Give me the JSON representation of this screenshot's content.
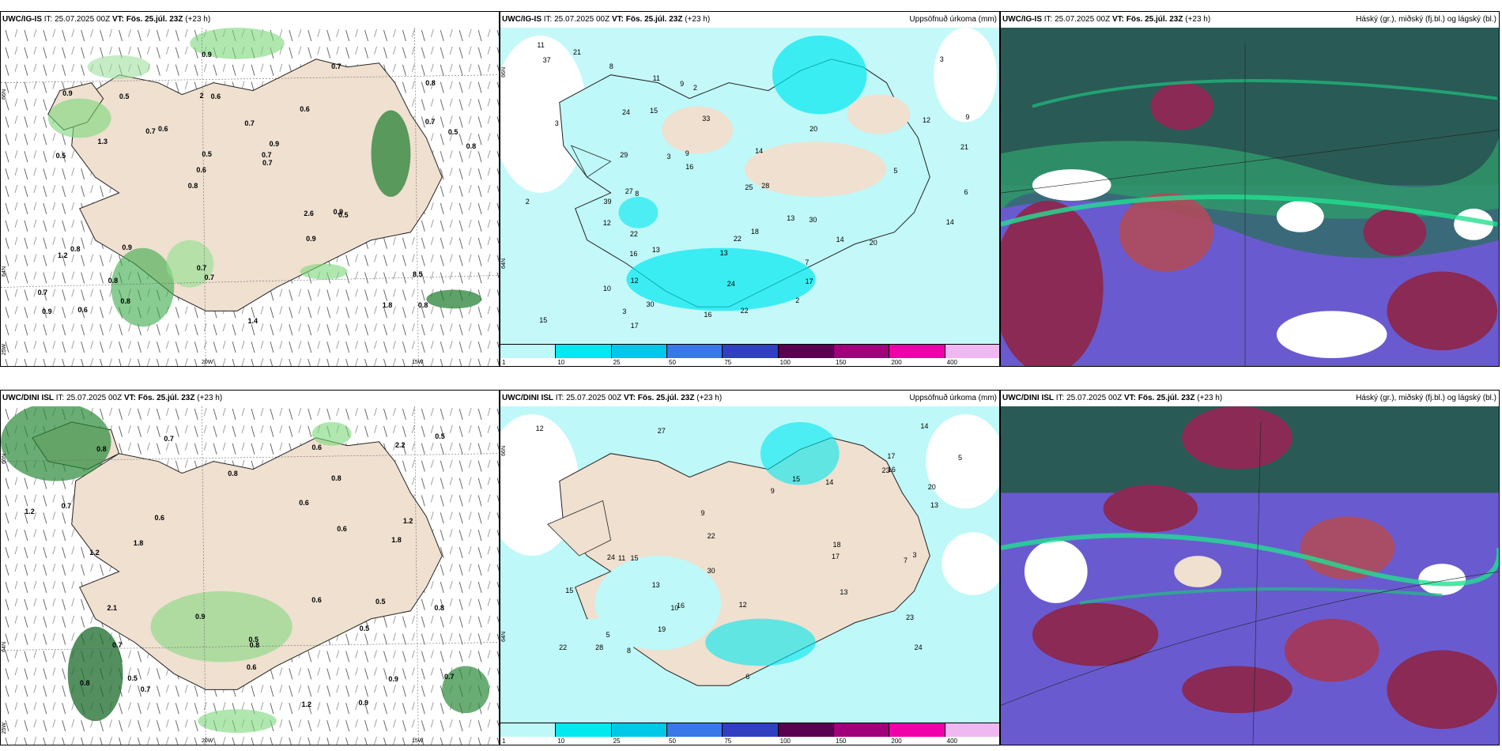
{
  "rows": [
    {
      "model": "UWC/IG-IS",
      "it_label": "IT:",
      "it_value": "25.07.2025 00Z",
      "vt_label": "VT:",
      "vt_value": "Fös. 25.júl. 23Z",
      "lead": "(+23 h)"
    },
    {
      "model": "UWC/DINI ISL",
      "it_label": "IT:",
      "it_value": "25.07.2025 00Z",
      "vt_label": "VT:",
      "vt_value": "Fös. 25.júl. 23Z",
      "lead": "(+23 h)"
    }
  ],
  "precip_title": "Uppsöfnuð úrkoma (mm)",
  "cloud_title": "Háský (gr.), miðský (fj.bl.) og lágský (bl.)",
  "axis_labels": {
    "lat66": "66N",
    "lat64": "64N",
    "lon25": "25W",
    "lon20": "20W",
    "lon15": "15W",
    "lat66r": "66N",
    "lat64r": "64N"
  },
  "colorbar": {
    "labels": [
      "1",
      "10",
      "25",
      "50",
      "75",
      "100",
      "150",
      "200",
      "400"
    ],
    "colors": [
      "#bff8f8",
      "#00e8f0",
      "#00c8e8",
      "#3a78e8",
      "#3040c0",
      "#5a0050",
      "#a0007a",
      "#f000a8",
      "#f0b8f0"
    ]
  },
  "wind_values_top": [
    "0.8",
    "0.5",
    "0.8",
    "0.8",
    "0.6",
    "0.6",
    "2",
    "0.7",
    "0.8",
    "0.6",
    "0.7",
    "0.8",
    "0.6",
    "0.9",
    "0.5",
    "0.9",
    "0.9",
    "0.8",
    "2.6",
    "0.7",
    "0.6",
    "0.7",
    "0.5",
    "0.5",
    "0.7",
    "0.9",
    "1.8",
    "8.5",
    "0.9",
    "1.4",
    "0.7",
    "1.3",
    "0.9",
    "0.8",
    "0.5",
    "0.7",
    "0.9",
    "0.7",
    "0.7",
    "1.2"
  ],
  "wind_values_bottom": [
    "0.8",
    "0.9",
    "0.8",
    "0.8",
    "0.5",
    "0.6",
    "0.7",
    "0.8",
    "1.2",
    "1.8",
    "0.6",
    "2.2",
    "1.2",
    "0.6",
    "0.7",
    "0.8",
    "0.7",
    "0.5",
    "0.6",
    "0.8",
    "0.7",
    "0.5",
    "0.9",
    "1.2",
    "0.5",
    "0.6",
    "0.5",
    "0.9",
    "2.1",
    "1.8",
    "0.6",
    "1.2",
    "0.7"
  ],
  "precip_values_top": [
    "37",
    "11",
    "2",
    "3",
    "9",
    "7",
    "2",
    "13",
    "15",
    "14",
    "16",
    "28",
    "17",
    "12",
    "22",
    "3",
    "13",
    "10",
    "15",
    "9",
    "21",
    "24",
    "30",
    "27",
    "39",
    "18",
    "22",
    "20",
    "16",
    "9",
    "13",
    "11",
    "12",
    "14",
    "25",
    "29",
    "8",
    "16",
    "17",
    "20",
    "24",
    "22",
    "30",
    "33",
    "21",
    "14",
    "12",
    "5",
    "2",
    "3",
    "6",
    "8",
    "3"
  ],
  "precip_values_bottom": [
    "22",
    "13",
    "15",
    "17",
    "24",
    "23",
    "27",
    "12",
    "9",
    "8",
    "7",
    "5",
    "17",
    "10",
    "12",
    "9",
    "15",
    "22",
    "19",
    "13",
    "14",
    "23",
    "18",
    "28",
    "30",
    "20",
    "24",
    "13",
    "14",
    "15",
    "16",
    "5",
    "11",
    "16",
    "6",
    "3"
  ]
}
